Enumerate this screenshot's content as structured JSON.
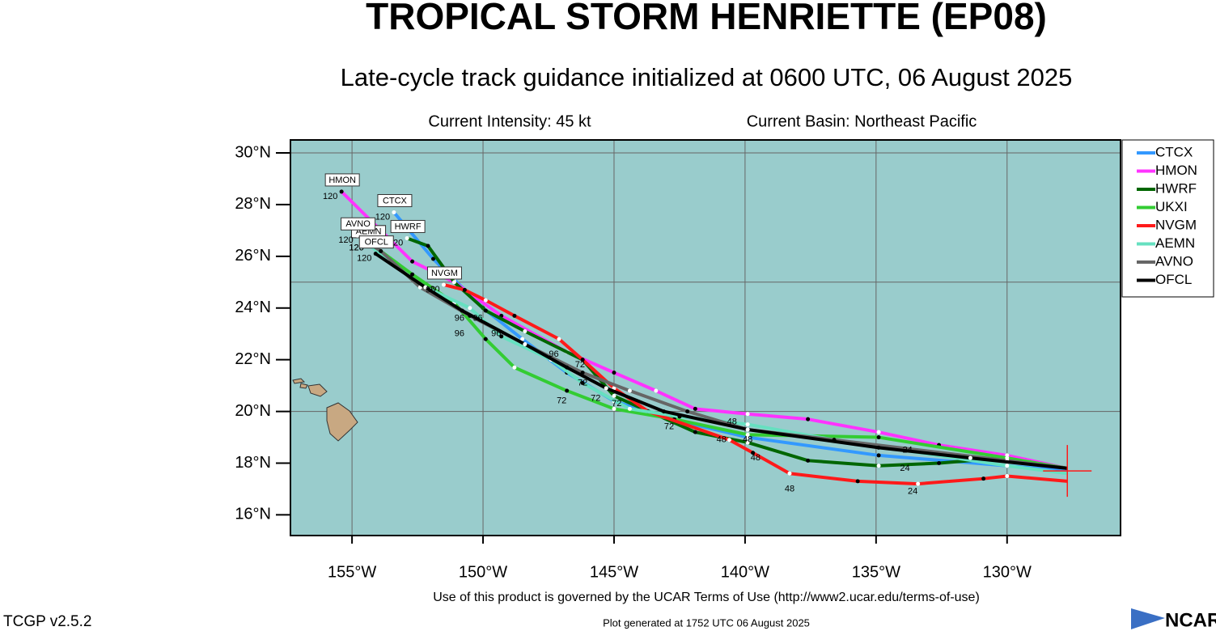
{
  "header": {
    "title": "TROPICAL STORM HENRIETTE (EP08)",
    "subtitle": "Late-cycle track guidance initialized at 0600 UTC, 06 August 2025",
    "intensity": "Current Intensity: 45 kt",
    "basin": "Current Basin: Northeast Pacific"
  },
  "chart_data": {
    "type": "track-map",
    "xlim": [
      -157.35,
      -125.67
    ],
    "ylim": [
      15.2,
      30.5
    ],
    "xticks": [
      {
        "value": -155,
        "label": "155°W"
      },
      {
        "value": -150,
        "label": "150°W"
      },
      {
        "value": -145,
        "label": "145°W"
      },
      {
        "value": -140,
        "label": "140°W"
      },
      {
        "value": -135,
        "label": "135°W"
      },
      {
        "value": -130,
        "label": "130°W"
      }
    ],
    "yticks": [
      {
        "value": 30,
        "label": "30°N"
      },
      {
        "value": 28,
        "label": "28°N"
      },
      {
        "value": 26,
        "label": "26°N"
      },
      {
        "value": 24,
        "label": "24°N"
      },
      {
        "value": 22,
        "label": "22°N"
      },
      {
        "value": 20,
        "label": "20°N"
      },
      {
        "value": 18,
        "label": "18°N"
      },
      {
        "value": 16,
        "label": "16°N"
      }
    ],
    "ygrid": [
      30,
      25,
      20
    ],
    "grid": true,
    "legend": "right",
    "center": {
      "lon": -127.7,
      "lat": 17.7
    },
    "series": [
      {
        "name": "CTCX",
        "color": "#3399ff",
        "end_label": "120",
        "lon": [
          -127.7,
          -130.0,
          -134.9,
          -139.9,
          -142.8,
          -145.0,
          -146.8,
          -148.5,
          -150.0,
          -151.1,
          -151.9,
          -153.4
        ],
        "lat": [
          17.7,
          17.9,
          18.3,
          19.0,
          19.7,
          20.4,
          21.5,
          22.8,
          24.0,
          25.1,
          25.9,
          27.7
        ]
      },
      {
        "name": "HMON",
        "color": "#ff33ff",
        "end_label": "120",
        "lon": [
          -127.7,
          -130.0,
          -132.6,
          -134.9,
          -137.6,
          -139.9,
          -141.9,
          -143.4,
          -145.0,
          -146.8,
          -149.3,
          -151.1,
          -152.7,
          -154.2,
          -155.4
        ],
        "lat": [
          17.8,
          18.3,
          18.7,
          19.2,
          19.7,
          19.9,
          20.1,
          20.8,
          21.5,
          22.3,
          23.7,
          25.0,
          25.8,
          27.3,
          28.5
        ]
      },
      {
        "name": "HWRF",
        "color": "#006600",
        "end_label": "120",
        "lon": [
          -127.7,
          -130.2,
          -132.6,
          -134.9,
          -137.6,
          -139.9,
          -141.9,
          -145.0,
          -146.2,
          -148.4,
          -149.9,
          -151.1,
          -152.1,
          -152.9
        ],
        "lat": [
          17.8,
          18.2,
          18.0,
          17.9,
          18.1,
          18.8,
          19.2,
          20.6,
          22.0,
          23.1,
          23.9,
          25.0,
          26.4,
          26.7
        ]
      },
      {
        "name": "UKXI",
        "color": "#33cc33",
        "end_label": "120",
        "lon": [
          -127.7,
          -130.0,
          -134.9,
          -139.9,
          -142.7,
          -145.0,
          -146.8,
          -148.8,
          -149.9,
          -151.1,
          -152.7,
          -153.9,
          -154.4
        ],
        "lat": [
          17.8,
          18.2,
          19.0,
          19.1,
          19.7,
          20.1,
          20.8,
          21.7,
          22.8,
          24.2,
          25.3,
          26.2,
          26.5
        ]
      },
      {
        "name": "NVGM",
        "color": "#ff1a1a",
        "end_label": "120",
        "lon": [
          -127.7,
          -130.0,
          -130.9,
          -133.4,
          -135.7,
          -138.3,
          -139.7,
          -140.6,
          -143.7,
          -145.0,
          -146.2,
          -147.1,
          -148.8,
          -149.9,
          -150.7,
          -151.5
        ],
        "lat": [
          17.3,
          17.5,
          17.4,
          17.2,
          17.3,
          17.6,
          18.4,
          18.9,
          20.0,
          20.9,
          22.0,
          22.8,
          23.7,
          24.3,
          24.7,
          24.9
        ]
      },
      {
        "name": "AEMN",
        "color": "#66e0c0",
        "end_label": "120",
        "lon": [
          -127.7,
          -130.0,
          -136.6,
          -139.9,
          -142.5,
          -144.4,
          -146.2,
          -147.4,
          -149.3,
          -150.5,
          -152.4,
          -153.6,
          -154.4
        ],
        "lat": [
          17.6,
          17.9,
          18.9,
          19.5,
          19.8,
          20.1,
          21.1,
          22.0,
          22.9,
          24.0,
          24.9,
          25.8,
          26.5
        ]
      },
      {
        "name": "AVNO",
        "color": "#666666",
        "end_label": "120",
        "lon": [
          -127.7,
          -130.0,
          -136.6,
          -139.9,
          -142.2,
          -144.4,
          -146.2,
          -148.4,
          -150.5,
          -152.4,
          -153.9,
          -154.8
        ],
        "lat": [
          17.8,
          18.1,
          18.9,
          19.3,
          20.0,
          20.8,
          21.5,
          22.6,
          23.7,
          24.8,
          26.2,
          26.8
        ]
      },
      {
        "name": "OFCL",
        "color": "#000000",
        "end_label": "120",
        "lon": [
          -127.7,
          -131.4,
          -134.9,
          -139.9,
          -143.1,
          -145.3,
          -146.8,
          -148.4,
          -150.8,
          -152.2,
          -154.1
        ],
        "lat": [
          17.8,
          18.2,
          18.6,
          19.3,
          20.0,
          20.9,
          21.7,
          22.6,
          23.9,
          24.8,
          26.1
        ]
      }
    ],
    "annotations": [
      {
        "text": "96",
        "lon": -152.0,
        "lat": 24.7
      },
      {
        "text": "96",
        "lon": -150.9,
        "lat": 23.6
      },
      {
        "text": "96",
        "lon": -150.2,
        "lat": 23.6
      },
      {
        "text": "96",
        "lon": -150.9,
        "lat": 23.0
      },
      {
        "text": "96",
        "lon": -149.5,
        "lat": 23.0
      },
      {
        "text": "96",
        "lon": -147.3,
        "lat": 22.2
      },
      {
        "text": "72",
        "lon": -146.3,
        "lat": 21.8
      },
      {
        "text": "72",
        "lon": -146.2,
        "lat": 21.1
      },
      {
        "text": "72",
        "lon": -147.0,
        "lat": 20.4
      },
      {
        "text": "72",
        "lon": -145.7,
        "lat": 20.5
      },
      {
        "text": "72",
        "lon": -144.9,
        "lat": 20.3
      },
      {
        "text": "72",
        "lon": -142.9,
        "lat": 19.4
      },
      {
        "text": "48",
        "lon": -140.5,
        "lat": 19.6
      },
      {
        "text": "48",
        "lon": -140.9,
        "lat": 18.9
      },
      {
        "text": "48",
        "lon": -139.9,
        "lat": 18.9
      },
      {
        "text": "48",
        "lon": -139.6,
        "lat": 18.2
      },
      {
        "text": "48",
        "lon": -138.3,
        "lat": 17.0
      },
      {
        "text": "24",
        "lon": -133.8,
        "lat": 18.5
      },
      {
        "text": "24",
        "lon": -133.9,
        "lat": 17.8
      },
      {
        "text": "24",
        "lon": -133.6,
        "lat": 16.9
      }
    ]
  },
  "footer": {
    "terms": "Use of this product is governed by the UCAR Terms of Use (http://www2.ucar.edu/terms-of-use)",
    "version": "TCGP v2.5.2",
    "generated": "Plot generated at 1752 UTC   06 August 2025",
    "logo": "NCAR"
  }
}
